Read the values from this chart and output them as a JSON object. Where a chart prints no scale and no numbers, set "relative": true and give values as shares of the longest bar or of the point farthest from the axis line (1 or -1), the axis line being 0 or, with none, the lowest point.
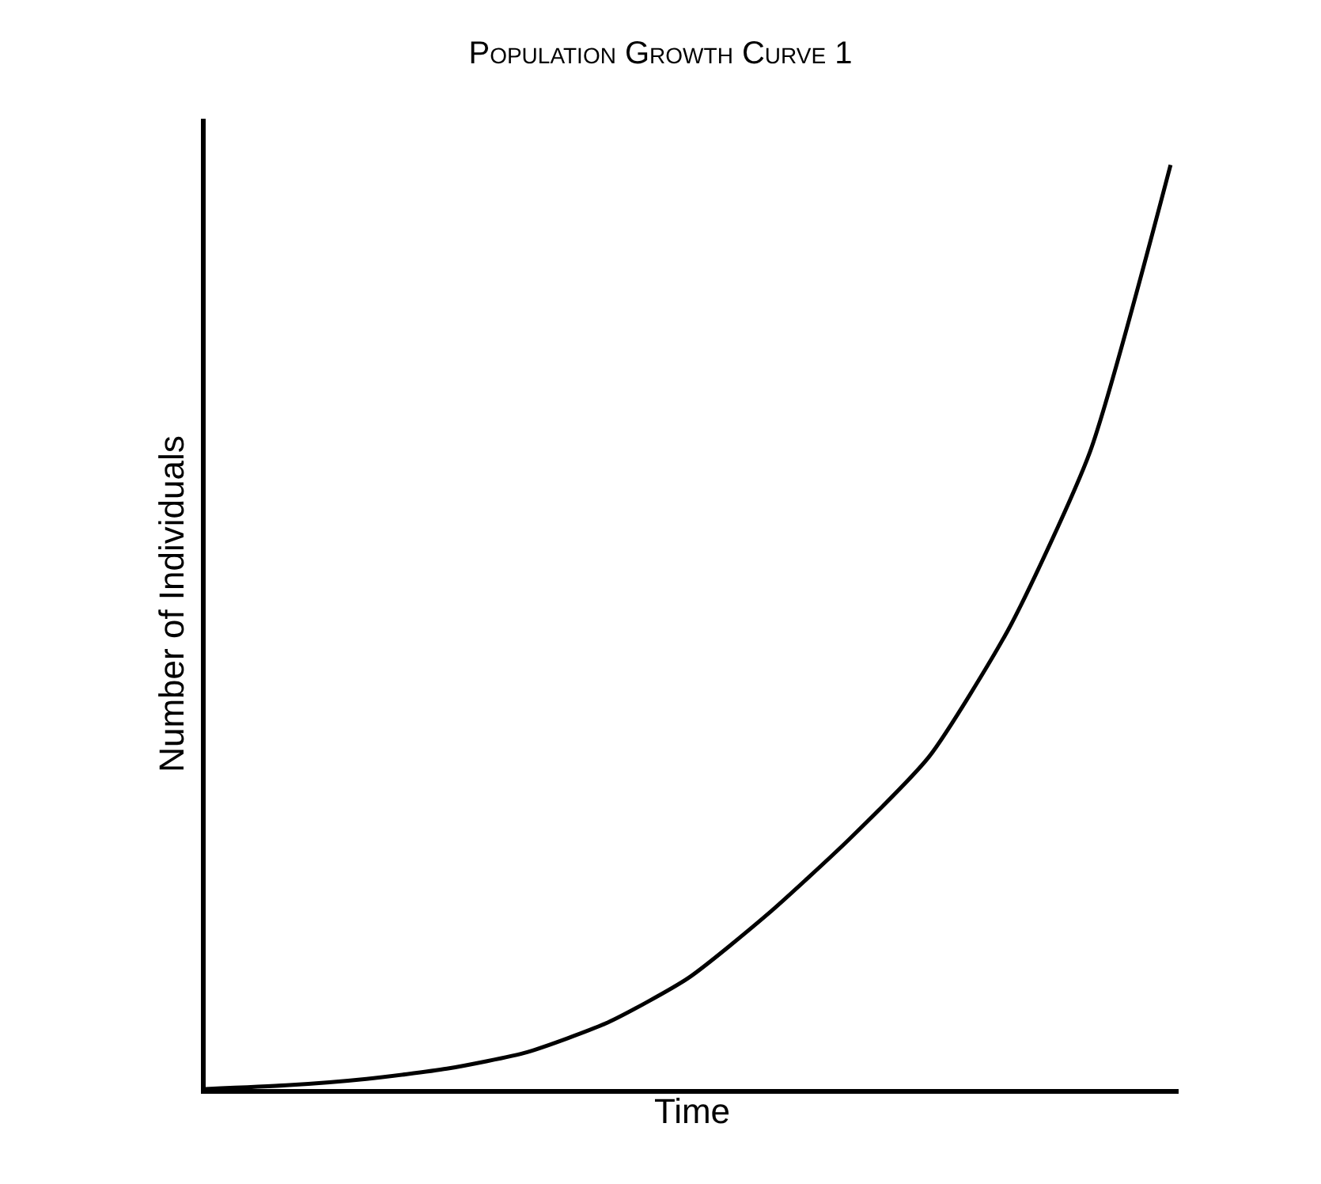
{
  "chart_data": {
    "type": "line",
    "title": "Population Growth Curve 1",
    "xlabel": "Time",
    "ylabel": "Number of Individuals",
    "relative": true,
    "categories": [
      null,
      null,
      null,
      null,
      null,
      null,
      null,
      null,
      null,
      null,
      null,
      null,
      null
    ],
    "series": [
      {
        "color": "#000000",
        "values": [
          0,
          0.004,
          0.011,
          0.022,
          0.04,
          0.072,
          0.12,
          0.19,
          0.27,
          0.36,
          0.5,
          0.69,
          1
        ]
      }
    ],
    "marker": "none",
    "line_style": "solid",
    "tick_labels": false
  }
}
